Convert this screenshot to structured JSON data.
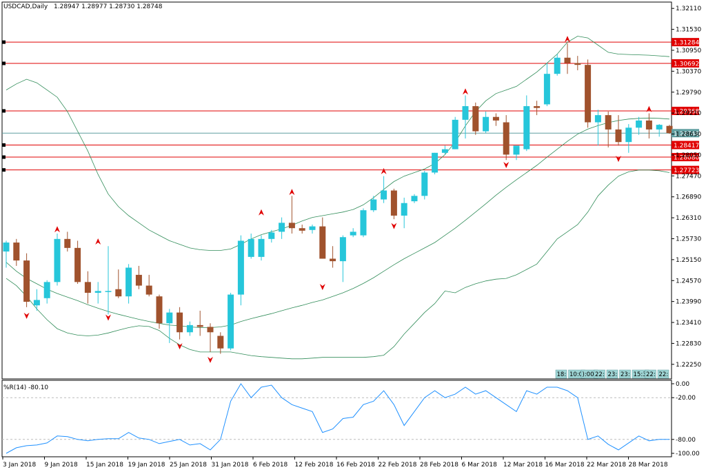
{
  "header": {
    "symbol_timeframe": "USDCAD,Daily",
    "ohlc": "1.28947 1.28977 1.28730 1.28748"
  },
  "indicator": {
    "label": "%R(14) -80.10",
    "ticks": [
      "0.00",
      "-20.00",
      "-80.00",
      "-100.00"
    ]
  },
  "price_axis_ticks": [
    "1.32110",
    "1.31530",
    "1.30950",
    "1.30370",
    "1.29790",
    "1.29210",
    "1.28630",
    "1.28050",
    "1.27470",
    "1.26890",
    "1.26310",
    "1.25730",
    "1.25150",
    "1.24570",
    "1.23990",
    "1.23410",
    "1.22830",
    "1.22250"
  ],
  "date_labels": [
    "3 Jan 2018",
    "9 Jan 2018",
    "15 Jan 2018",
    "19 Jan 2018",
    "25 Jan 2018",
    "31 Jan 2018",
    "6 Feb 2018",
    "12 Feb 2018",
    "16 Feb 2018",
    "22 Feb 2018",
    "28 Feb 2018",
    "6 Mar 2018",
    "12 Mar 2018",
    "16 Mar 2018",
    "22 Mar 2018",
    "28 Mar 2018"
  ],
  "time_boxes": [
    "18:",
    "10:00",
    "):00",
    "22:",
    "23:",
    "23:",
    "15:30",
    "22:",
    "22:"
  ],
  "colors": {
    "bull": "#26c6da",
    "bear": "#a0522d",
    "band": "#2e8b57",
    "level": "#e00000",
    "current": "#5f9ea0",
    "wpr": "#1e90ff",
    "arrow": "#e00000"
  },
  "chart_data": [
    {
      "type": "candlestick",
      "title": "USDCAD,Daily",
      "ylim": [
        1.219,
        1.324
      ],
      "current_price": 1.28748,
      "price_levels": [
        1.31284,
        1.30692,
        1.29368,
        1.28417,
        1.2808,
        1.27723
      ],
      "candles": [
        {
          "o": 1.2545,
          "h": 1.2575,
          "l": 1.25,
          "c": 1.257
        },
        {
          "o": 1.257,
          "h": 1.258,
          "l": 1.2505,
          "c": 1.252
        },
        {
          "o": 1.252,
          "h": 1.254,
          "l": 1.239,
          "c": 1.2405
        },
        {
          "o": 1.2395,
          "h": 1.244,
          "l": 1.238,
          "c": 1.241
        },
        {
          "o": 1.2415,
          "h": 1.2465,
          "l": 1.24,
          "c": 1.246
        },
        {
          "o": 1.246,
          "h": 1.2595,
          "l": 1.245,
          "c": 1.258
        },
        {
          "o": 1.258,
          "h": 1.26,
          "l": 1.2545,
          "c": 1.2555
        },
        {
          "o": 1.2555,
          "h": 1.2575,
          "l": 1.2455,
          "c": 1.246
        },
        {
          "o": 1.246,
          "h": 1.249,
          "l": 1.24,
          "c": 1.243
        },
        {
          "o": 1.243,
          "h": 1.246,
          "l": 1.24,
          "c": 1.2435
        },
        {
          "o": 1.2435,
          "h": 1.256,
          "l": 1.237,
          "c": 1.2435
        },
        {
          "o": 1.244,
          "h": 1.2495,
          "l": 1.2415,
          "c": 1.242
        },
        {
          "o": 1.242,
          "h": 1.251,
          "l": 1.24,
          "c": 1.25
        },
        {
          "o": 1.248,
          "h": 1.2505,
          "l": 1.244,
          "c": 1.245
        },
        {
          "o": 1.245,
          "h": 1.248,
          "l": 1.242,
          "c": 1.2425
        },
        {
          "o": 1.242,
          "h": 1.2425,
          "l": 1.233,
          "c": 1.2345
        },
        {
          "o": 1.2345,
          "h": 1.2385,
          "l": 1.229,
          "c": 1.2375
        },
        {
          "o": 1.2375,
          "h": 1.239,
          "l": 1.23,
          "c": 1.232
        },
        {
          "o": 1.232,
          "h": 1.235,
          "l": 1.231,
          "c": 1.234
        },
        {
          "o": 1.234,
          "h": 1.238,
          "l": 1.231,
          "c": 1.2335
        },
        {
          "o": 1.2335,
          "h": 1.2345,
          "l": 1.2265,
          "c": 1.232
        },
        {
          "o": 1.231,
          "h": 1.232,
          "l": 1.226,
          "c": 1.2275
        },
        {
          "o": 1.2275,
          "h": 1.243,
          "l": 1.227,
          "c": 1.2425
        },
        {
          "o": 1.2425,
          "h": 1.259,
          "l": 1.2395,
          "c": 1.2575
        },
        {
          "o": 1.253,
          "h": 1.2595,
          "l": 1.2525,
          "c": 1.258
        },
        {
          "o": 1.253,
          "h": 1.259,
          "l": 1.252,
          "c": 1.258
        },
        {
          "o": 1.258,
          "h": 1.2605,
          "l": 1.257,
          "c": 1.2598
        },
        {
          "o": 1.26,
          "h": 1.264,
          "l": 1.258,
          "c": 1.2625
        },
        {
          "o": 1.2625,
          "h": 1.27,
          "l": 1.2595,
          "c": 1.261
        },
        {
          "o": 1.261,
          "h": 1.262,
          "l": 1.2595,
          "c": 1.2603
        },
        {
          "o": 1.2605,
          "h": 1.262,
          "l": 1.2595,
          "c": 1.2615
        },
        {
          "o": 1.2615,
          "h": 1.264,
          "l": 1.2525,
          "c": 1.2525
        },
        {
          "o": 1.2525,
          "h": 1.256,
          "l": 1.25,
          "c": 1.2518
        },
        {
          "o": 1.2518,
          "h": 1.259,
          "l": 1.246,
          "c": 1.2585
        },
        {
          "o": 1.259,
          "h": 1.261,
          "l": 1.2585,
          "c": 1.26
        },
        {
          "o": 1.259,
          "h": 1.2665,
          "l": 1.2585,
          "c": 1.266
        },
        {
          "o": 1.266,
          "h": 1.27,
          "l": 1.2655,
          "c": 1.269
        },
        {
          "o": 1.269,
          "h": 1.2755,
          "l": 1.268,
          "c": 1.2715
        },
        {
          "o": 1.2715,
          "h": 1.272,
          "l": 1.2635,
          "c": 1.2645
        },
        {
          "o": 1.2645,
          "h": 1.2695,
          "l": 1.261,
          "c": 1.268
        },
        {
          "o": 1.2685,
          "h": 1.2705,
          "l": 1.268,
          "c": 1.27
        },
        {
          "o": 1.27,
          "h": 1.277,
          "l": 1.269,
          "c": 1.2765
        },
        {
          "o": 1.2765,
          "h": 1.282,
          "l": 1.276,
          "c": 1.282
        },
        {
          "o": 1.282,
          "h": 1.284,
          "l": 1.2815,
          "c": 1.283
        },
        {
          "o": 1.283,
          "h": 1.292,
          "l": 1.283,
          "c": 1.2912
        },
        {
          "o": 1.2912,
          "h": 1.298,
          "l": 1.286,
          "c": 1.295
        },
        {
          "o": 1.295,
          "h": 1.296,
          "l": 1.287,
          "c": 1.288
        },
        {
          "o": 1.288,
          "h": 1.2935,
          "l": 1.2875,
          "c": 1.292
        },
        {
          "o": 1.292,
          "h": 1.293,
          "l": 1.2895,
          "c": 1.291
        },
        {
          "o": 1.2905,
          "h": 1.2925,
          "l": 1.28,
          "c": 1.2815
        },
        {
          "o": 1.2815,
          "h": 1.2835,
          "l": 1.28,
          "c": 1.284
        },
        {
          "o": 1.283,
          "h": 1.298,
          "l": 1.2825,
          "c": 1.295
        },
        {
          "o": 1.295,
          "h": 1.2965,
          "l": 1.2925,
          "c": 1.2945
        },
        {
          "o": 1.2955,
          "h": 1.307,
          "l": 1.295,
          "c": 1.304
        },
        {
          "o": 1.304,
          "h": 1.3095,
          "l": 1.3035,
          "c": 1.3085
        },
        {
          "o": 1.3085,
          "h": 1.3125,
          "l": 1.304,
          "c": 1.307
        },
        {
          "o": 1.307,
          "h": 1.309,
          "l": 1.305,
          "c": 1.3065
        },
        {
          "o": 1.3065,
          "h": 1.308,
          "l": 1.289,
          "c": 1.2905
        },
        {
          "o": 1.2905,
          "h": 1.294,
          "l": 1.284,
          "c": 1.2925
        },
        {
          "o": 1.2925,
          "h": 1.2935,
          "l": 1.2835,
          "c": 1.2885
        },
        {
          "o": 1.2885,
          "h": 1.2925,
          "l": 1.284,
          "c": 1.285
        },
        {
          "o": 1.285,
          "h": 1.29,
          "l": 1.282,
          "c": 1.289
        },
        {
          "o": 1.289,
          "h": 1.292,
          "l": 1.287,
          "c": 1.291
        },
        {
          "o": 1.291,
          "h": 1.293,
          "l": 1.286,
          "c": 1.2885
        },
        {
          "o": 1.2885,
          "h": 1.29,
          "l": 1.2865,
          "c": 1.2898
        },
        {
          "o": 1.2895,
          "h": 1.2898,
          "l": 1.2873,
          "c": 1.28748
        }
      ],
      "bollinger_upper": [
        1.2995,
        1.3012,
        1.3025,
        1.3015,
        1.2995,
        1.2975,
        1.2935,
        1.288,
        1.2825,
        1.276,
        1.2705,
        1.267,
        1.2645,
        1.2625,
        1.2605,
        1.259,
        1.2575,
        1.2565,
        1.2555,
        1.255,
        1.2548,
        1.2548,
        1.2552,
        1.2565,
        1.258,
        1.2592,
        1.26,
        1.2608,
        1.2618,
        1.263,
        1.264,
        1.2645,
        1.265,
        1.2655,
        1.2662,
        1.2675,
        1.2695,
        1.2718,
        1.274,
        1.2755,
        1.2765,
        1.2775,
        1.279,
        1.2815,
        1.285,
        1.2895,
        1.2935,
        1.2965,
        1.2985,
        1.2995,
        1.3005,
        1.3025,
        1.3045,
        1.307,
        1.3095,
        1.3128,
        1.3145,
        1.314,
        1.312,
        1.31,
        1.3095,
        1.3094,
        1.3093,
        1.3092,
        1.309,
        1.3088
      ],
      "bollinger_middle": [
        1.2515,
        1.249,
        1.247,
        1.2455,
        1.244,
        1.2428,
        1.2418,
        1.2408,
        1.2397,
        1.2387,
        1.2378,
        1.237,
        1.2363,
        1.2356,
        1.235,
        1.2345,
        1.234,
        1.2338,
        1.2335,
        1.2333,
        1.2333,
        1.2335,
        1.234,
        1.235,
        1.2358,
        1.2365,
        1.2372,
        1.238,
        1.2388,
        1.2395,
        1.2403,
        1.241,
        1.242,
        1.243,
        1.2442,
        1.2456,
        1.2472,
        1.249,
        1.2508,
        1.2525,
        1.254,
        1.2555,
        1.257,
        1.259,
        1.261,
        1.2632,
        1.2655,
        1.2678,
        1.2702,
        1.2724,
        1.2745,
        1.2765,
        1.2785,
        1.2808,
        1.283,
        1.2852,
        1.2872,
        1.2886,
        1.2896,
        1.2904,
        1.291,
        1.2914,
        1.2916,
        1.2917,
        1.2916,
        1.2914
      ],
      "bollinger_lower": [
        1.247,
        1.245,
        1.242,
        1.2385,
        1.2355,
        1.233,
        1.2318,
        1.2312,
        1.231,
        1.2312,
        1.2318,
        1.2326,
        1.2333,
        1.2338,
        1.2336,
        1.2325,
        1.2303,
        1.2285,
        1.2272,
        1.2265,
        1.2265,
        1.2265,
        1.2265,
        1.226,
        1.2255,
        1.2252,
        1.225,
        1.2248,
        1.2246,
        1.2246,
        1.2248,
        1.225,
        1.225,
        1.225,
        1.225,
        1.225,
        1.2252,
        1.2256,
        1.228,
        1.2315,
        1.2345,
        1.2375,
        1.24,
        1.2435,
        1.243,
        1.2445,
        1.2455,
        1.2463,
        1.2468,
        1.247,
        1.248,
        1.2495,
        1.251,
        1.2545,
        1.258,
        1.26,
        1.262,
        1.2655,
        1.27,
        1.273,
        1.2755,
        1.2767,
        1.2772,
        1.2772,
        1.277,
        1.2765
      ],
      "fractals_up": [
        {
          "i": 5,
          "p": 1.2608
        },
        {
          "i": 9,
          "p": 1.2574
        },
        {
          "i": 25,
          "p": 1.2655
        },
        {
          "i": 28,
          "p": 1.2712
        },
        {
          "i": 37,
          "p": 1.277
        },
        {
          "i": 45,
          "p": 1.2992
        },
        {
          "i": 55,
          "p": 1.3138
        },
        {
          "i": 63,
          "p": 1.2943
        }
      ],
      "fractals_down": [
        {
          "i": 2,
          "p": 1.2365
        },
        {
          "i": 10,
          "p": 1.236
        },
        {
          "i": 17,
          "p": 1.228
        },
        {
          "i": 20,
          "p": 1.2242
        },
        {
          "i": 31,
          "p": 1.2445
        },
        {
          "i": 38,
          "p": 1.2615
        },
        {
          "i": 49,
          "p": 1.2785
        },
        {
          "i": 60,
          "p": 1.2802
        }
      ]
    },
    {
      "type": "line",
      "title": "%R(14) -80.10",
      "ylim": [
        -100,
        0
      ],
      "levels": [
        -20,
        -80
      ],
      "values": [
        -100,
        -92,
        -89,
        -88,
        -85,
        -75,
        -76,
        -80,
        -82,
        -80,
        -79,
        -79,
        -70,
        -78,
        -80,
        -86,
        -83,
        -80,
        -88,
        -86,
        -95,
        -80,
        -25,
        0,
        -20,
        -5,
        -2,
        -20,
        -30,
        -35,
        -40,
        -70,
        -65,
        -50,
        -48,
        -30,
        -25,
        -10,
        -30,
        -60,
        -40,
        -20,
        -10,
        -20,
        -15,
        -5,
        -15,
        -10,
        -20,
        -30,
        -40,
        -10,
        -15,
        -5,
        -5,
        -10,
        -20,
        -80,
        -75,
        -87,
        -95,
        -85,
        -75,
        -82,
        -80,
        -80
      ]
    }
  ]
}
